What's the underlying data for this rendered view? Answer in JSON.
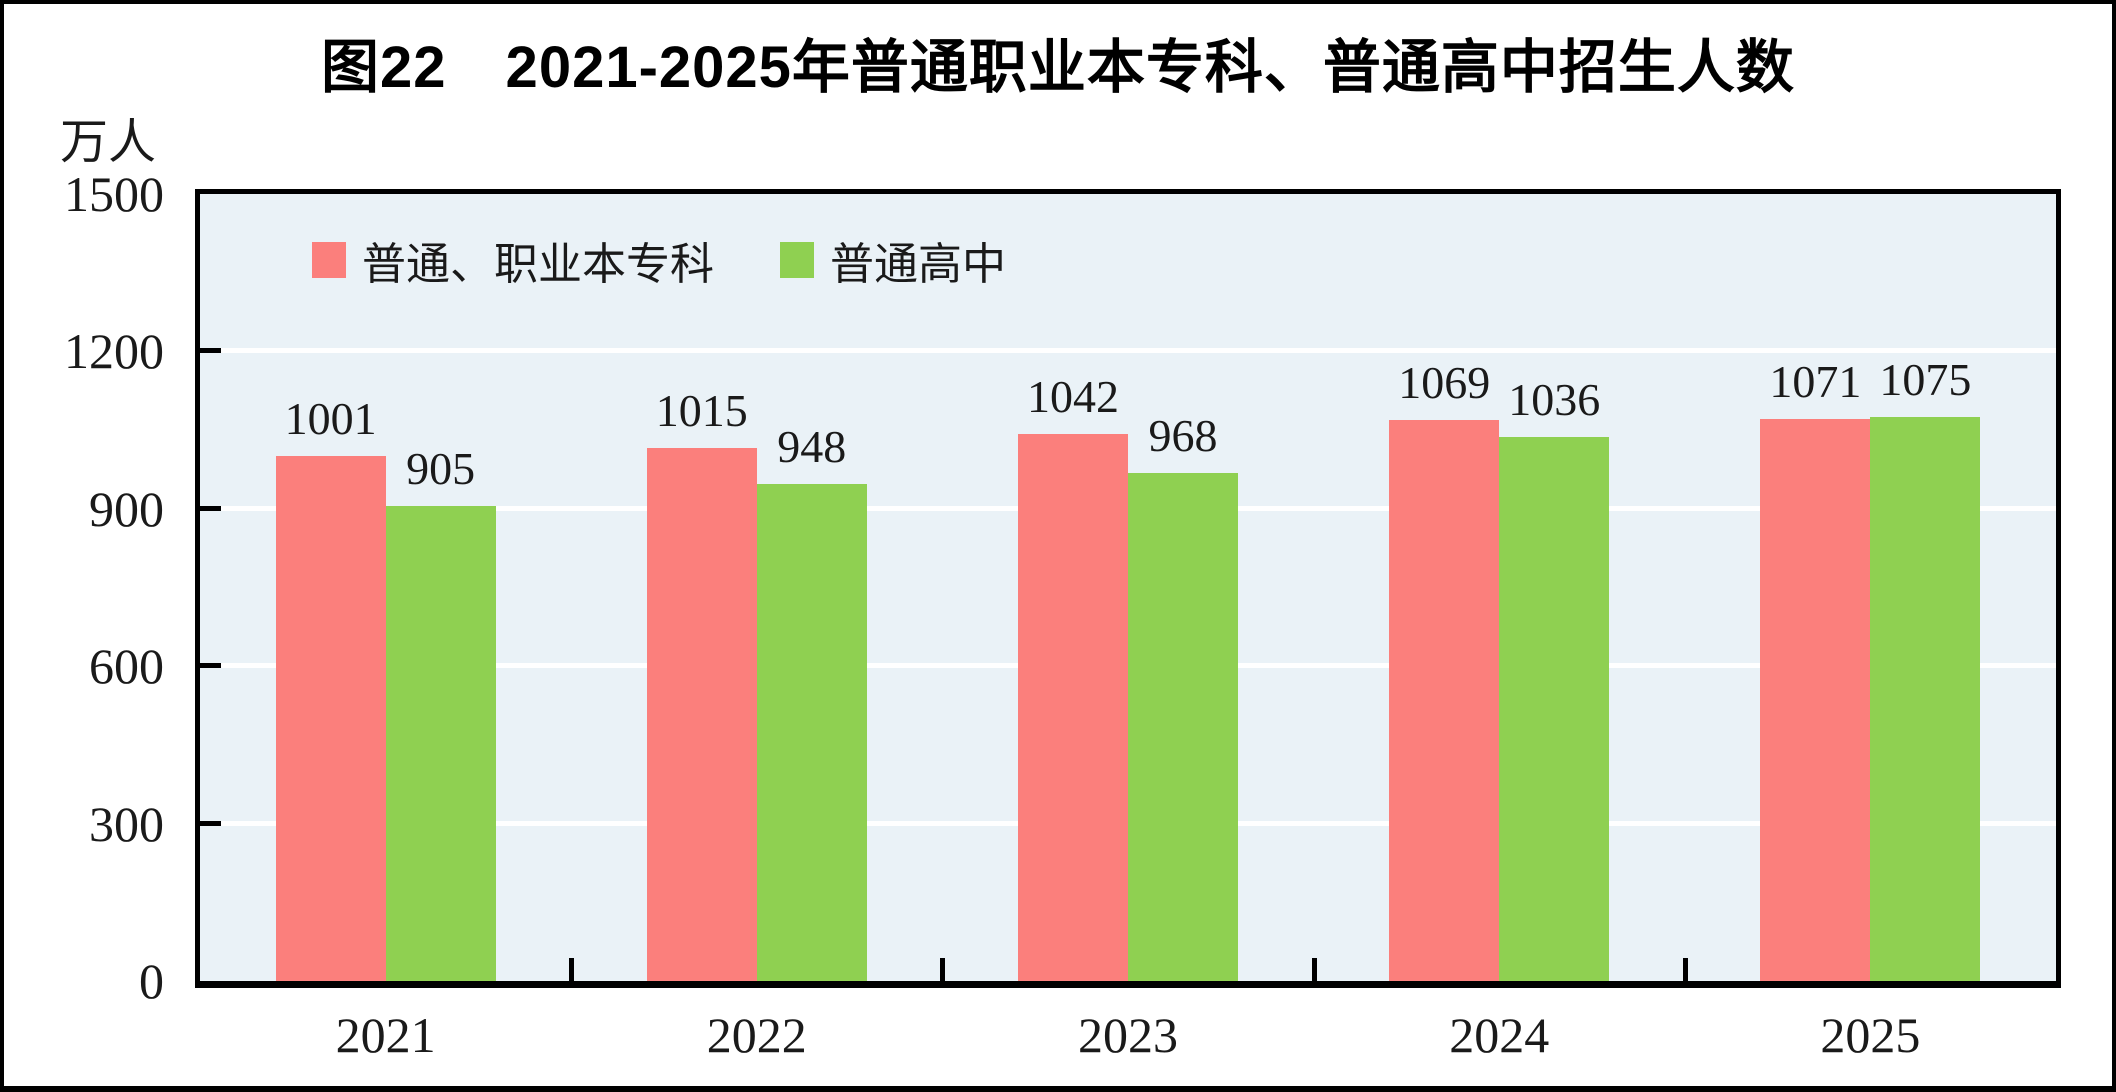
{
  "figure": {
    "title": "图22　2021-2025年普通职业本专科、普通高中招生人数",
    "unit_label": "万人"
  },
  "chart_data": {
    "type": "bar",
    "title": "图22　2021-2025年普通职业本专科、普通高中招生人数",
    "ylabel": "万人",
    "xlabel": "",
    "categories": [
      "2021",
      "2022",
      "2023",
      "2024",
      "2025"
    ],
    "series": [
      {
        "name": "普通、职业本专科",
        "color": "#fb7f7c",
        "values": [
          1001,
          1015,
          1042,
          1069,
          1071
        ]
      },
      {
        "name": "普通高中",
        "color": "#8fd051",
        "values": [
          905,
          948,
          968,
          1036,
          1075
        ]
      }
    ],
    "ylim": [
      0,
      1500
    ],
    "yticks": [
      0,
      300,
      600,
      900,
      1200,
      1500
    ],
    "grid": true,
    "legend_position": "inside-top-left",
    "colors": {
      "plot_background": "#eaf2f7",
      "gridline": "#ffffff",
      "axis": "#000000",
      "text": "#1a1a1a"
    }
  }
}
